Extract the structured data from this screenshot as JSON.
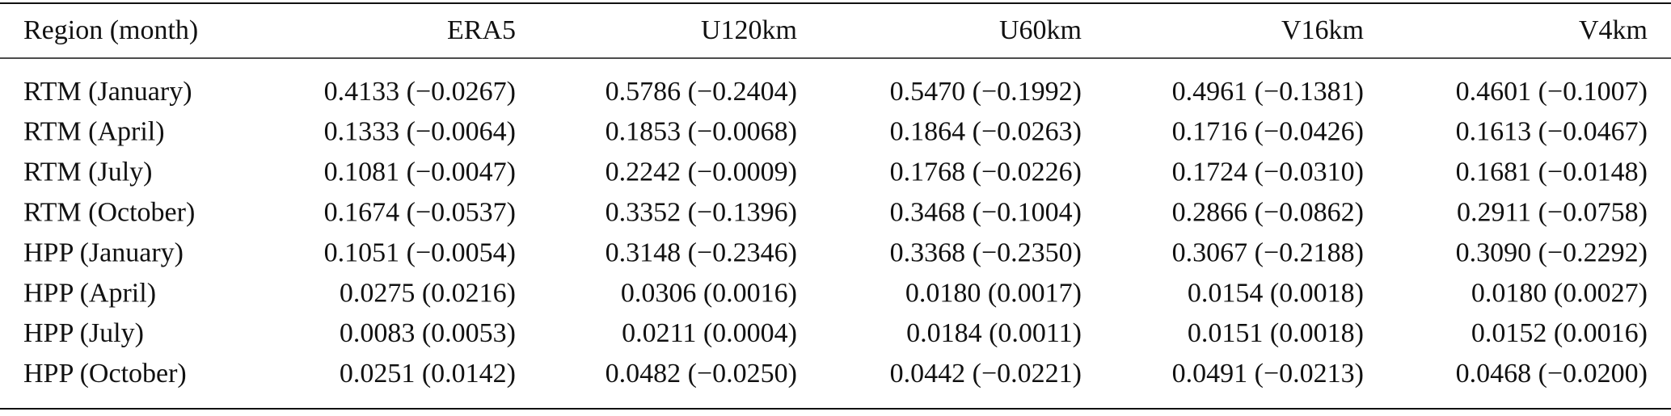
{
  "table": {
    "header": [
      "Region (month)",
      "ERA5",
      "U120km",
      "U60km",
      "V16km",
      "V4km"
    ],
    "rows": [
      [
        "RTM (January)",
        "0.4133 (−0.0267)",
        "0.5786 (−0.2404)",
        "0.5470 (−0.1992)",
        "0.4961 (−0.1381)",
        "0.4601 (−0.1007)"
      ],
      [
        "RTM (April)",
        "0.1333 (−0.0064)",
        "0.1853 (−0.0068)",
        "0.1864 (−0.0263)",
        "0.1716 (−0.0426)",
        "0.1613 (−0.0467)"
      ],
      [
        "RTM (July)",
        "0.1081 (−0.0047)",
        "0.2242 (−0.0009)",
        "0.1768 (−0.0226)",
        "0.1724 (−0.0310)",
        "0.1681 (−0.0148)"
      ],
      [
        "RTM (October)",
        "0.1674 (−0.0537)",
        "0.3352 (−0.1396)",
        "0.3468 (−0.1004)",
        "0.2866 (−0.0862)",
        "0.2911 (−0.0758)"
      ],
      [
        "HPP (January)",
        "0.1051 (−0.0054)",
        "0.3148 (−0.2346)",
        "0.3368 (−0.2350)",
        "0.3067 (−0.2188)",
        "0.3090 (−0.2292)"
      ],
      [
        "HPP (April)",
        "0.0275 (0.0216)",
        "0.0306 (0.0016)",
        "0.0180 (0.0017)",
        "0.0154 (0.0018)",
        "0.0180 (0.0027)"
      ],
      [
        "HPP (July)",
        "0.0083 (0.0053)",
        "0.0211 (0.0004)",
        "0.0184 (0.0011)",
        "0.0151 (0.0018)",
        "0.0152 (0.0016)"
      ],
      [
        "HPP (October)",
        "0.0251 (0.0142)",
        "0.0482 (−0.0250)",
        "0.0442 (−0.0221)",
        "0.0491 (−0.0213)",
        "0.0468 (−0.0200)"
      ]
    ]
  }
}
